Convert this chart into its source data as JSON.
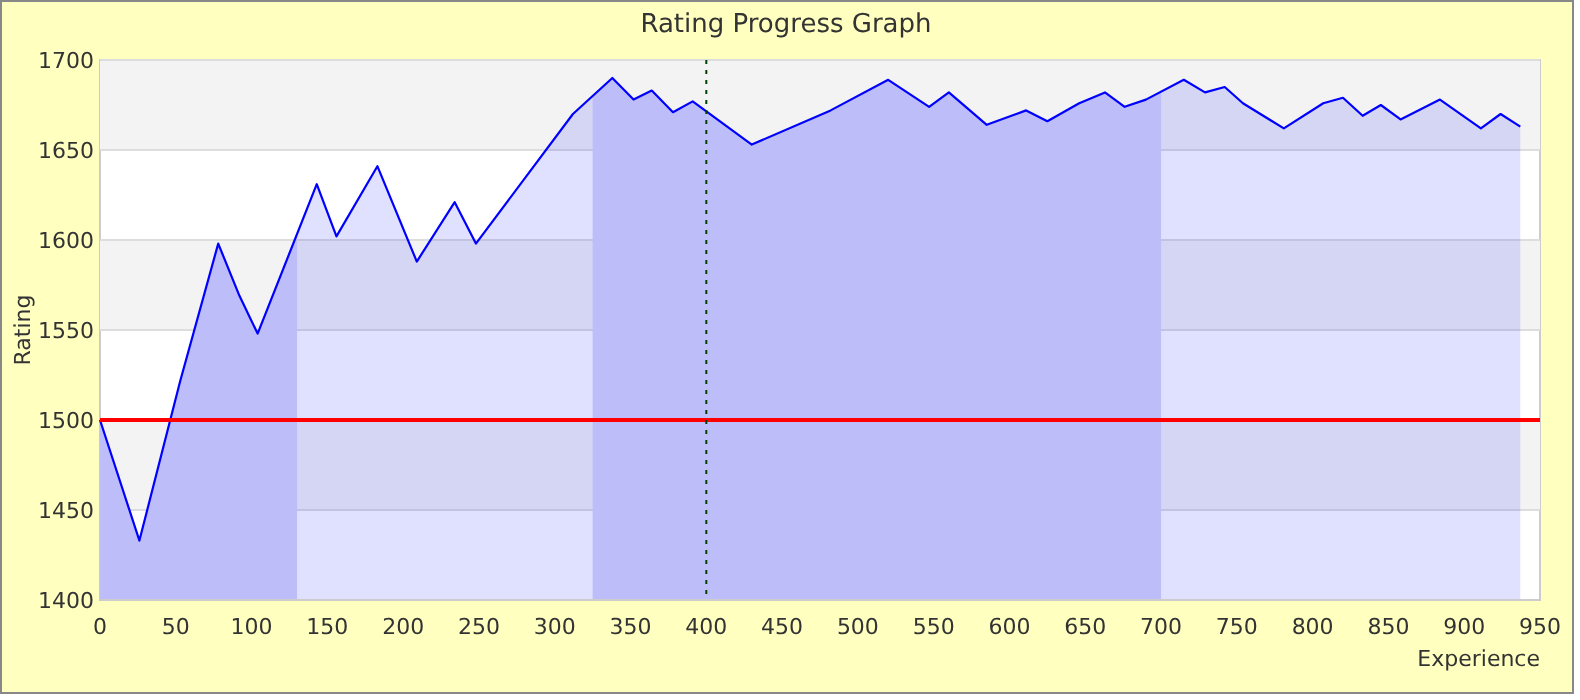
{
  "chart_data": {
    "type": "area",
    "title": "Rating Progress Graph",
    "xlabel": "Experience",
    "ylabel": "Rating",
    "x": [
      0,
      26,
      53,
      78,
      92,
      104,
      143,
      156,
      183,
      209,
      234,
      248,
      312,
      338,
      352,
      364,
      378,
      391,
      430,
      482,
      520,
      547,
      560,
      585,
      611,
      625,
      646,
      663,
      676,
      690,
      715,
      729,
      742,
      754,
      781,
      807,
      820,
      833,
      845,
      858,
      884,
      911,
      924,
      937
    ],
    "series": [
      {
        "color": "#0000ff",
        "values": [
          1500,
          1433,
          1522,
          1598,
          1569,
          1548,
          1631,
          1602,
          1641,
          1588,
          1621,
          1598,
          1670,
          1690,
          1678,
          1683,
          1671,
          1677,
          1653,
          1672,
          1689,
          1674,
          1682,
          1664,
          1672,
          1666,
          1676,
          1682,
          1674,
          1678,
          1689,
          1682,
          1685,
          1676,
          1662,
          1676,
          1679,
          1669,
          1675,
          1667,
          1678,
          1662,
          1670,
          1663
        ]
      }
    ],
    "xlim": [
      0,
      950
    ],
    "xticks": [
      0,
      50,
      100,
      150,
      200,
      250,
      300,
      350,
      400,
      450,
      500,
      550,
      600,
      650,
      700,
      750,
      800,
      850,
      900,
      950
    ],
    "ylim": [
      1400,
      1700
    ],
    "yticks": [
      1400,
      1450,
      1500,
      1550,
      1600,
      1650,
      1700
    ],
    "grid": "y",
    "ref_lines": [
      {
        "axis": "y",
        "value": 1500,
        "color": "#ff0000",
        "line_style": "solid"
      },
      {
        "axis": "x",
        "value": 400,
        "color": "#004000",
        "line_style": "dotted"
      }
    ],
    "bands": [
      {
        "axis": "x",
        "from": 0,
        "to": 130,
        "color": "#d8d8fa"
      },
      {
        "axis": "x",
        "from": 325,
        "to": 700,
        "color": "#d8d8fa"
      }
    ]
  }
}
